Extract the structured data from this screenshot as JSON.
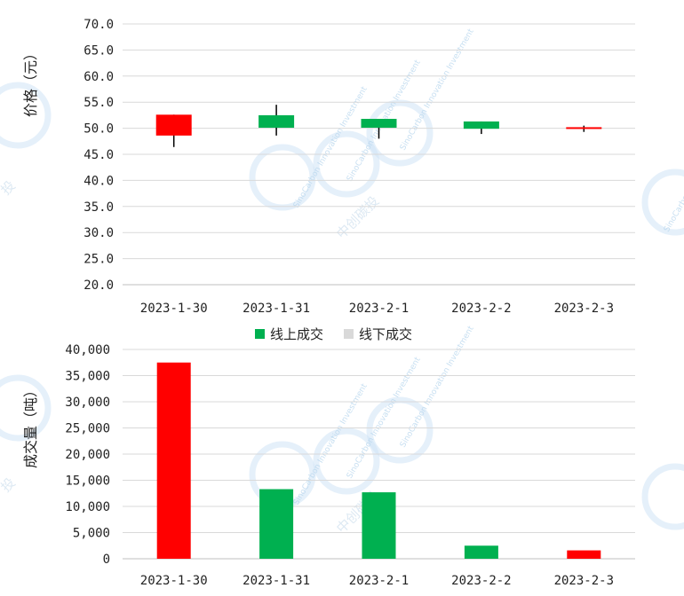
{
  "colors": {
    "up": "#00b050",
    "down": "#ff0000",
    "offline": "#d9d9d9",
    "wick": "#000000"
  },
  "watermark": {
    "company_en": "SinoCarbon Innovation Investment",
    "company_cn": "中创碳投",
    "glyph": "投"
  },
  "chart_data": [
    {
      "type": "candlestick",
      "ylabel": "价格（元）",
      "ylim": [
        20.0,
        70.0
      ],
      "yticks": [
        "20.0",
        "25.0",
        "30.0",
        "35.0",
        "40.0",
        "45.0",
        "50.0",
        "55.0",
        "60.0",
        "65.0",
        "70.0"
      ],
      "categories": [
        "2023-1-30",
        "2023-1-31",
        "2023-2-1",
        "2023-2-2",
        "2023-2-3"
      ],
      "open": [
        52.6,
        50.1,
        50.1,
        49.9,
        50.2
      ],
      "close": [
        48.6,
        52.5,
        51.8,
        51.3,
        49.9
      ],
      "high": [
        52.6,
        54.5,
        51.8,
        51.3,
        50.5
      ],
      "low": [
        46.4,
        48.6,
        48.0,
        48.9,
        49.3
      ]
    },
    {
      "type": "bar",
      "ylabel": "成交量（吨）",
      "ylim": [
        0,
        40000
      ],
      "yticks": [
        "0",
        "5,000",
        "10,000",
        "15,000",
        "20,000",
        "25,000",
        "30,000",
        "35,000",
        "40,000"
      ],
      "categories": [
        "2023-1-30",
        "2023-1-31",
        "2023-2-1",
        "2023-2-2",
        "2023-2-3"
      ],
      "series": [
        {
          "name": "线上成交",
          "values": [
            37500,
            13300,
            12700,
            2500,
            1600
          ]
        },
        {
          "name": "线下成交",
          "values": [
            0,
            0,
            0,
            0,
            0
          ]
        }
      ],
      "bar_colors": [
        "#ff0000",
        "#00b050",
        "#00b050",
        "#00b050",
        "#ff0000"
      ],
      "legend": "top-center"
    }
  ]
}
